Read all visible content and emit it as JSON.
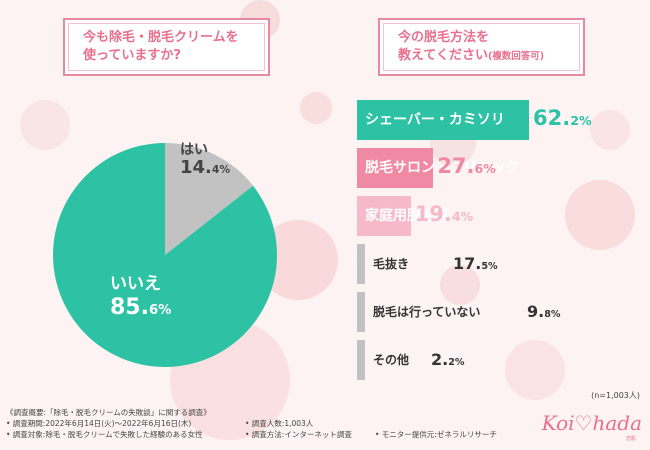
{
  "q1": {
    "line1": "今も除毛・脱毛クリームを",
    "line2": "使っていますか?"
  },
  "q2": {
    "line1": "今の脱毛方法を",
    "line2": "教えてください",
    "note": "(複数回答可)"
  },
  "chart_data": [
    {
      "type": "pie",
      "title": "今も除毛・脱毛クリームを使っていますか?",
      "slices": [
        {
          "label": "いいえ",
          "value": 85.6,
          "display_main": "85.",
          "display_sub": "6%",
          "color": "#2dc2a4"
        },
        {
          "label": "はい",
          "value": 14.4,
          "display_main": "14.",
          "display_sub": "4%",
          "color": "#c2c2c2"
        }
      ]
    },
    {
      "type": "bar",
      "title": "今の脱毛方法を教えてください(複数回答可)",
      "categories": [
        "シェーバー・カミソリ",
        "脱毛サロン・クリニック",
        "家庭用脱毛器",
        "毛抜き",
        "脱毛は行っていない",
        "その他"
      ],
      "values": [
        62.2,
        27.6,
        19.4,
        17.5,
        9.8,
        2.2
      ],
      "value_main": [
        "62.",
        "27.",
        "19.",
        "17.",
        "9.",
        "2."
      ],
      "value_sub": [
        "2%",
        "6%",
        "4%",
        "5%",
        "8%",
        "2%"
      ],
      "colors": [
        "#2dc2a4",
        "#f08aa4",
        "#f5b9ca",
        "#c2c2c2",
        "#c2c2c2",
        "#c2c2c2"
      ],
      "label_colors": [
        "#ffffff",
        "#ffffff",
        "#ffffff",
        "#333333",
        "#333333",
        "#333333"
      ],
      "value_colors": [
        "#2dc2a4",
        "#f08aa4",
        "#f5b9ca",
        "#333333",
        "#333333",
        "#333333"
      ],
      "xlim": [
        0,
        62.2
      ]
    }
  ],
  "sample_size": "(n=1,003人)",
  "notes": {
    "line1": "《調査概要:「除毛・脱毛クリームの失敗談」に関する調査》",
    "period": "• 調査期間:2022年6月14日(火)〜2022年6月16日(木)",
    "people": "• 調査人数:1,003人",
    "target": "• 調査対象:除毛・脱毛クリームで失敗した経験のある女性",
    "method": "• 調査方法:インターネット調査",
    "provider": "• モニター提供元:ゼネラルリサーチ"
  },
  "logo": {
    "name": "Koi♡hada",
    "sub": "恋肌"
  }
}
